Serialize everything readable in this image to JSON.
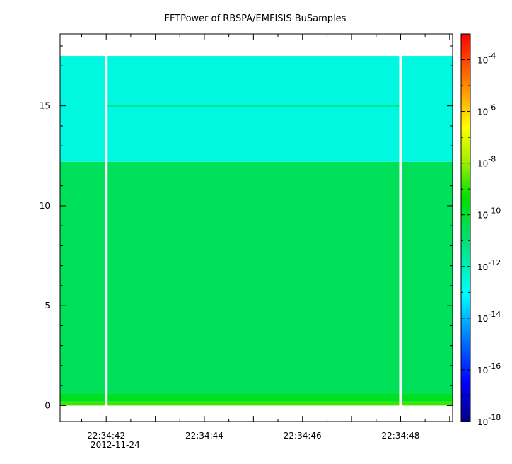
{
  "chart_data": {
    "type": "heatmap",
    "title": "FFTPower of RBSPA/EMFISIS  BuSamples",
    "xlabel": "",
    "ylabel": "",
    "x_tick_labels": [
      "22:34:42",
      "22:34:44",
      "22:34:46",
      "22:34:48"
    ],
    "x_date_label": "2012-11-24",
    "x_range": [
      "22:34:41.06",
      "22:34:49.06"
    ],
    "y_tick_labels": [
      "0",
      "5",
      "10",
      "15"
    ],
    "ylim": [
      -0.8,
      18.6
    ],
    "y_data_range": [
      0,
      17.5
    ],
    "colorbar": {
      "scale": "log",
      "range": [
        1e-18,
        0.001
      ],
      "tick_labels": [
        {
          "base": "10",
          "exp": "-4",
          "value": 0.0001
        },
        {
          "base": "10",
          "exp": "-6",
          "value": 1e-06
        },
        {
          "base": "10",
          "exp": "-8",
          "value": 1e-08
        },
        {
          "base": "10",
          "exp": "-10",
          "value": 1e-10
        },
        {
          "base": "10",
          "exp": "-12",
          "value": 1e-12
        },
        {
          "base": "10",
          "exp": "-14",
          "value": 1e-14
        },
        {
          "base": "10",
          "exp": "-16",
          "value": 1e-16
        },
        {
          "base": "10",
          "exp": "-18",
          "value": 1e-18
        }
      ]
    },
    "data_gaps": [
      "22:34:42.0",
      "22:34:48.0"
    ],
    "bands": [
      {
        "y_from": 0,
        "y_to": 0.2,
        "log_power": -8.8
      },
      {
        "y_from": 0.2,
        "y_to": 0.6,
        "log_power": -9.8
      },
      {
        "y_from": 0.6,
        "y_to": 12.2,
        "log_power": -10.6
      },
      {
        "y_from": 12.2,
        "y_to": 17.5,
        "log_power": -12.6
      }
    ],
    "spectral_line": {
      "y": 15,
      "log_power": -11.2
    },
    "grid": false,
    "legend": "none"
  }
}
